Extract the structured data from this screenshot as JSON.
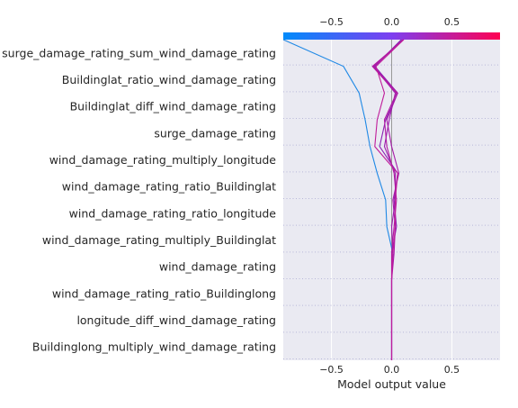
{
  "chart_data": {
    "type": "line",
    "title": "",
    "xlabel": "Model output value",
    "ylabel": "",
    "xlim": [
      -0.9,
      0.9
    ],
    "x_ticks": [
      -0.5,
      0,
      0.5
    ],
    "x_tick_labels": [
      "−0.5",
      "0.0",
      "0.5"
    ],
    "colorbar": {
      "low_color": "#008bfb",
      "mid_color": "#7d3ff0",
      "high_color": "#ff0052"
    },
    "grid": true,
    "features_top_to_bottom": [
      "surge_damage_rating_sum_wind_damage_rating",
      "Buildinglat_ratio_wind_damage_rating",
      "Buildinglat_diff_wind_damage_rating",
      "surge_damage_rating",
      "wind_damage_rating_multiply_longitude",
      "wind_damage_rating_ratio_Buildinglat",
      "wind_damage_rating_ratio_longitude",
      "wind_damage_rating_multiply_Buildinglat",
      "wind_damage_rating",
      "wind_damage_rating_ratio_Buildinglong",
      "longitude_diff_wind_damage_rating",
      "Buildinglong_multiply_wind_damage_rating"
    ],
    "series_note": "cumulative model output value at each boundary, listed from bottom (base value) to top (final output)",
    "series": [
      {
        "color": "#1e88e5",
        "values": [
          0.0,
          0.0,
          0.0,
          0.0,
          0.01,
          -0.04,
          -0.05,
          -0.12,
          -0.18,
          -0.22,
          -0.27,
          -0.4,
          -0.9
        ]
      },
      {
        "color": "#8a1eb4",
        "values": [
          0.0,
          0.0,
          0.0,
          0.0,
          0.0,
          0.04,
          0.02,
          0.05,
          -0.1,
          -0.05,
          0.05,
          -0.14,
          0.08
        ]
      },
      {
        "color": "#9b1fae",
        "values": [
          0.0,
          0.0,
          0.0,
          0.0,
          0.01,
          0.0,
          0.03,
          0.03,
          -0.06,
          -0.02,
          0.03,
          -0.15,
          0.09
        ]
      },
      {
        "color": "#a81aa8",
        "values": [
          0.0,
          0.0,
          0.0,
          0.0,
          0.02,
          0.03,
          0.01,
          0.06,
          0.0,
          -0.04,
          0.05,
          -0.15,
          0.1
        ]
      },
      {
        "color": "#b21aa2",
        "values": [
          0.0,
          0.0,
          0.0,
          0.0,
          0.0,
          0.02,
          0.04,
          0.02,
          -0.04,
          -0.06,
          0.04,
          -0.16,
          0.1
        ]
      },
      {
        "color": "#c01d9b",
        "values": [
          0.0,
          0.0,
          0.0,
          0.0,
          0.01,
          0.03,
          0.03,
          0.05,
          -0.14,
          -0.12,
          -0.06,
          -0.13,
          0.1
        ]
      }
    ]
  }
}
